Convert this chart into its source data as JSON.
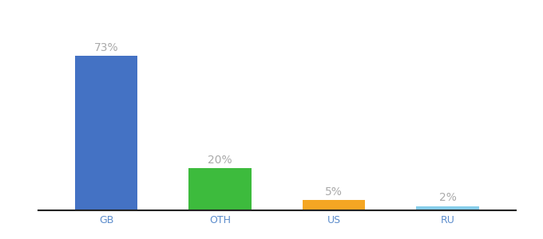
{
  "categories": [
    "GB",
    "OTH",
    "US",
    "RU"
  ],
  "values": [
    73,
    20,
    5,
    2
  ],
  "bar_colors": [
    "#4472c4",
    "#3dbb3d",
    "#f5a623",
    "#87ceeb"
  ],
  "labels": [
    "73%",
    "20%",
    "5%",
    "2%"
  ],
  "background_color": "#ffffff",
  "label_color": "#aaaaaa",
  "label_fontsize": 10,
  "tick_fontsize": 9,
  "tick_color": "#5b8ccc",
  "ylim": [
    0,
    88
  ],
  "bar_width": 0.55
}
